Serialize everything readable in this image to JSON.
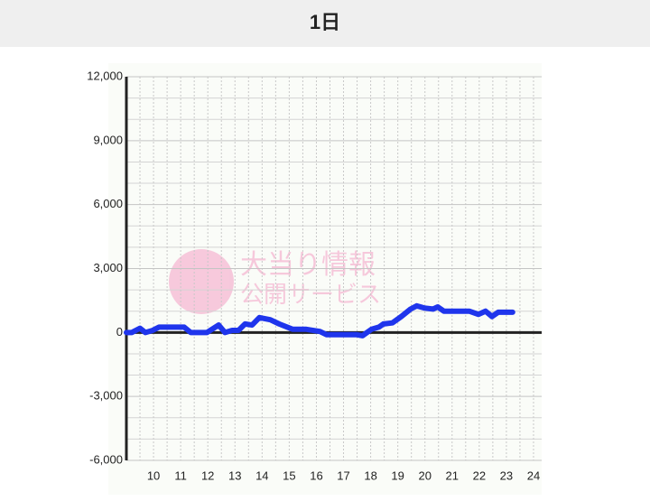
{
  "chart_data": {
    "type": "line",
    "title": "1日",
    "watermark": [
      "大当り情報",
      "公開サービス"
    ],
    "x": [
      9.0,
      9.2,
      9.5,
      9.7,
      9.97,
      10.2,
      11.13,
      11.37,
      11.97,
      12.4,
      12.63,
      12.9,
      13.13,
      13.37,
      13.63,
      13.9,
      14.3,
      14.63,
      15.13,
      15.63,
      16.13,
      16.37,
      17.47,
      17.7,
      18.03,
      18.3,
      18.47,
      18.8,
      19.13,
      19.47,
      19.7,
      19.97,
      20.3,
      20.47,
      20.7,
      21.63,
      21.97,
      22.23,
      22.47,
      22.7,
      23.23
    ],
    "series": [
      {
        "color": "#1f35ec",
        "values": [
          0,
          0,
          200,
          0,
          100,
          250,
          250,
          0,
          0,
          350,
          0,
          100,
          100,
          400,
          350,
          700,
          600,
          400,
          150,
          150,
          50,
          -100,
          -100,
          -150,
          150,
          250,
          400,
          450,
          750,
          1100,
          1250,
          1150,
          1100,
          1200,
          1000,
          1000,
          850,
          1000,
          750,
          950,
          950
        ]
      }
    ],
    "xlim": [
      9,
      24.3
    ],
    "xticks": [
      10,
      11,
      12,
      13,
      14,
      15,
      16,
      17,
      18,
      19,
      20,
      21,
      22,
      23,
      24
    ],
    "xminor_ticks": [
      9.5,
      10.5,
      11.5,
      12.5,
      13.5,
      14.5,
      15.5,
      16.5,
      17.5,
      18.5,
      19.5,
      20.5,
      21.5,
      22.5,
      23.5
    ],
    "ylim": [
      -6000,
      12000
    ],
    "yticks": [
      {
        "value": 12000,
        "label": "12,000"
      },
      {
        "value": 9000,
        "label": "9,000"
      },
      {
        "value": 6000,
        "label": "6,000"
      },
      {
        "value": 3000,
        "label": "3,000"
      },
      0,
      {
        "value": -3000,
        "label": "-3,000"
      },
      {
        "value": -6000,
        "label": "-6,000"
      }
    ],
    "yminor_ticks": [
      11000,
      10000,
      8000,
      7000,
      5000,
      4000,
      2000,
      1000,
      -1000,
      -2000,
      -4000,
      -5000
    ],
    "grid": true
  }
}
